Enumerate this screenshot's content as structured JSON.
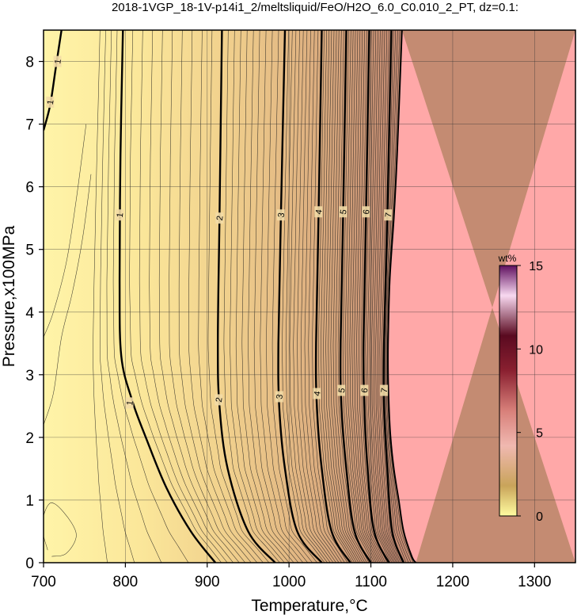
{
  "chart_data": {
    "type": "heatmap",
    "title": "2018-1VGP_18-1V-p14i1_2/meltsliquid/FeO/H2O_6.0_C0.010_2_PT, dz=0.1:",
    "xlabel": "Temperature,°C",
    "ylabel": "Pressure,x100MPa",
    "xlim": [
      700,
      1350
    ],
    "ylim": [
      0,
      8.5
    ],
    "x_ticks": [
      700,
      800,
      900,
      1000,
      1100,
      1200,
      1300
    ],
    "y_ticks": [
      0,
      1,
      2,
      3,
      4,
      5,
      6,
      7,
      8
    ],
    "x_tick_labels": [
      "700",
      "800",
      "900",
      "1000",
      "1100",
      "1200",
      "1300"
    ],
    "y_tick_labels": [
      "0",
      "1",
      "2",
      "3",
      "4",
      "5",
      "6",
      "7",
      "8"
    ],
    "grid": true,
    "z_label": "wt%",
    "colorbar": {
      "unit": "wt%",
      "range": [
        0,
        15
      ],
      "ticks": [
        0,
        5,
        10,
        15
      ],
      "tick_labels": [
        "0",
        "5",
        "10",
        "15"
      ],
      "placement": "right-inside"
    },
    "contour_interval": 0.1,
    "liquidus_region_color": "#ffa8a8",
    "colors": {
      "low": "#fff2a0",
      "mid": "#c98f72",
      "frame": "#000000"
    },
    "major_contours": [
      {
        "level": 1,
        "label": "1",
        "points": [
          [
            910,
            0
          ],
          [
            880,
            0.5
          ],
          [
            850,
            1.2
          ],
          [
            825,
            2.0
          ],
          [
            808,
            2.6
          ],
          [
            795,
            3.3
          ],
          [
            793,
            4.5
          ],
          [
            794,
            6.5
          ],
          [
            797,
            8.5
          ]
        ],
        "label_at": [
          [
            793,
            5.55
          ],
          [
            805,
            2.55
          ]
        ]
      },
      {
        "level": 2,
        "label": "2",
        "points": [
          [
            983,
            0
          ],
          [
            950,
            0.5
          ],
          [
            925,
            1.5
          ],
          [
            915,
            2.5
          ],
          [
            913,
            3.5
          ],
          [
            915,
            5.5
          ],
          [
            918,
            8.5
          ]
        ],
        "label_at": [
          [
            915,
            5.5
          ],
          [
            914,
            2.6
          ]
        ]
      },
      {
        "level": 3,
        "label": "3",
        "points": [
          [
            1040,
            0
          ],
          [
            1010,
            0.5
          ],
          [
            995,
            1.5
          ],
          [
            988,
            2.5
          ],
          [
            987,
            3.5
          ],
          [
            990,
            5.5
          ],
          [
            995,
            8.5
          ]
        ],
        "label_at": [
          [
            990,
            5.55
          ],
          [
            988,
            2.65
          ]
        ]
      },
      {
        "level": 4,
        "label": "4",
        "points": [
          [
            1075,
            0
          ],
          [
            1052,
            0.5
          ],
          [
            1040,
            1.5
          ],
          [
            1034,
            2.5
          ],
          [
            1033,
            3.5
          ],
          [
            1036,
            5.5
          ],
          [
            1040,
            8.5
          ]
        ],
        "label_at": [
          [
            1036,
            5.6
          ],
          [
            1034,
            2.7
          ]
        ]
      },
      {
        "level": 5,
        "label": "5",
        "points": [
          [
            1100,
            0
          ],
          [
            1080,
            0.5
          ],
          [
            1070,
            1.5
          ],
          [
            1064,
            2.5
          ],
          [
            1063,
            3.5
          ],
          [
            1066,
            5.5
          ],
          [
            1070,
            8.5
          ]
        ],
        "label_at": [
          [
            1066,
            5.6
          ],
          [
            1064,
            2.75
          ]
        ]
      },
      {
        "level": 6,
        "label": "6",
        "points": [
          [
            1122,
            0
          ],
          [
            1104,
            0.5
          ],
          [
            1096,
            1.5
          ],
          [
            1092,
            2.5
          ],
          [
            1091,
            3.5
          ],
          [
            1094,
            5.5
          ],
          [
            1098,
            8.5
          ]
        ],
        "label_at": [
          [
            1094,
            5.6
          ],
          [
            1092,
            2.75
          ]
        ]
      },
      {
        "level": 7,
        "label": "7",
        "points": [
          [
            1140,
            0
          ],
          [
            1126,
            0.5
          ],
          [
            1120,
            1.5
          ],
          [
            1116,
            2.5
          ],
          [
            1116,
            3.5
          ],
          [
            1120,
            5.5
          ],
          [
            1125,
            8.5
          ]
        ],
        "label_at": [
          [
            1121,
            5.55
          ],
          [
            1116,
            2.75
          ]
        ]
      },
      {
        "level": 1,
        "label": "1",
        "points": [
          [
            700,
            6.9
          ],
          [
            708,
            7.3
          ],
          [
            715,
            7.9
          ],
          [
            722,
            8.5
          ]
        ],
        "label_at": [
          [
            708,
            7.35
          ],
          [
            717,
            8.0
          ]
        ]
      }
    ],
    "liquidus_boundary": [
      [
        1155,
        0
      ],
      [
        1150,
        0.1
      ],
      [
        1140,
        0.5
      ],
      [
        1134,
        1.0
      ],
      [
        1128,
        1.5
      ],
      [
        1124,
        2.0
      ],
      [
        1122,
        2.5
      ],
      [
        1121,
        3.0
      ],
      [
        1121,
        3.5
      ],
      [
        1123,
        4.5
      ],
      [
        1128,
        5.5
      ],
      [
        1132,
        6.5
      ],
      [
        1138,
        8.5
      ]
    ]
  }
}
